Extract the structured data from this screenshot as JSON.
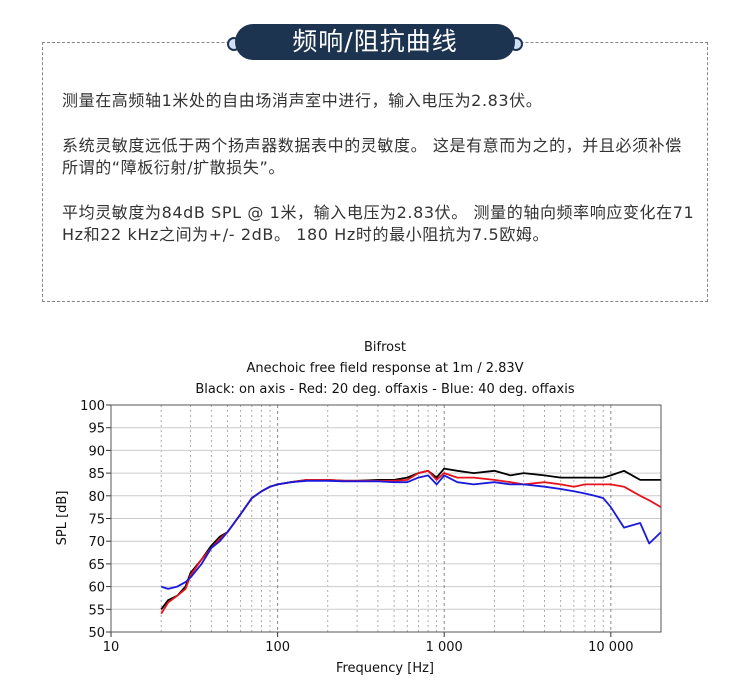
{
  "header": {
    "title": "频响/阻抗曲线"
  },
  "paragraphs": [
    "测量在高频轴1米处的自由场消声室中进行，输入电压为2.83伏。",
    "系统灵敏度远低于两个扬声器数据表中的灵敏度。 这是有意而为之的，并且必须补偿所谓的“障板衍射/扩散损失”。",
    "平均灵敏度为84dB SPL @ 1米，输入电压为2.83伏。 测量的轴向频率响应变化在71 Hz和22 kHz之间为+/- 2dB。 180 Hz时的最小阻抗为7.5欧姆。"
  ],
  "chart_data": {
    "type": "line",
    "title": "Bifrost",
    "subtitle": "Anechoic free field response at 1m / 2.83V",
    "annotation": "Black: on axis - Red: 20 deg. offaxis - Blue: 40 deg. offaxis",
    "xlabel": "Frequency [Hz]",
    "ylabel": "SPL [dB]",
    "x_log": true,
    "grid": true,
    "xlim": [
      10,
      20000
    ],
    "ylim": [
      50,
      100
    ],
    "xticks": [
      10,
      100,
      {
        "value": 1000,
        "label": "1 000"
      },
      {
        "value": 10000,
        "label": "10 000"
      }
    ],
    "yticks": [
      50,
      55,
      60,
      65,
      70,
      75,
      80,
      85,
      90,
      95,
      100
    ],
    "x": [
      20,
      22,
      25,
      28,
      30,
      35,
      40,
      45,
      50,
      60,
      70,
      80,
      90,
      100,
      120,
      150,
      200,
      250,
      300,
      400,
      500,
      600,
      700,
      800,
      900,
      1000,
      1200,
      1500,
      2000,
      2500,
      3000,
      4000,
      5000,
      6000,
      7000,
      8000,
      9000,
      10000,
      12000,
      15000,
      17000,
      20000
    ],
    "series": [
      {
        "color": "#000000",
        "values": [
          55,
          57,
          58,
          60,
          63,
          66,
          69,
          71,
          72,
          76,
          79.5,
          81,
          82,
          82.5,
          83,
          83.5,
          83.5,
          83.3,
          83.3,
          83.5,
          83.5,
          84,
          85,
          85.5,
          84,
          86,
          85.5,
          85,
          85.5,
          84.5,
          85,
          84.5,
          84,
          84,
          84,
          84,
          84,
          84.5,
          85.5,
          83.5,
          83.5,
          83.5
        ]
      },
      {
        "color": "#e8141c",
        "values": [
          54,
          56.5,
          58,
          59.5,
          62.5,
          66,
          68.5,
          70.5,
          72,
          76,
          79.5,
          81,
          82,
          82.5,
          83,
          83.5,
          83.5,
          83.3,
          83.3,
          83.3,
          83.3,
          83.5,
          85,
          85.5,
          83.5,
          85,
          84,
          84,
          83.5,
          83,
          82.5,
          83,
          82.5,
          82,
          82.5,
          82.5,
          82.5,
          82.5,
          82,
          80,
          79,
          77.5
        ]
      },
      {
        "color": "#1a1adc",
        "values": [
          60,
          59.5,
          60,
          61,
          62,
          65,
          68.5,
          70,
          72,
          76,
          79.5,
          81,
          82,
          82.5,
          83,
          83.3,
          83.3,
          83.2,
          83.2,
          83.2,
          83,
          83,
          84,
          84.5,
          82.5,
          84.5,
          83,
          82.5,
          83,
          82.5,
          82.5,
          82,
          81.5,
          81,
          80.5,
          80,
          79.5,
          77.5,
          73,
          74,
          69.5,
          72
        ]
      }
    ]
  }
}
